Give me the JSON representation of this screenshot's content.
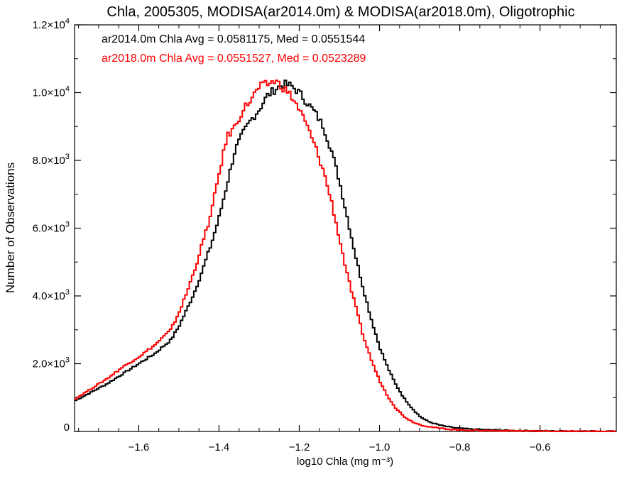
{
  "chart_data": {
    "type": "line",
    "title": "Chla, 2005305, MODISA(ar2014.0m) & MODISA(ar2018.0m), Oligotrophic",
    "xlabel": "log10 Chla (mg m⁻³)",
    "ylabel": "Number of Observations",
    "xlim": [
      -1.76,
      -0.41
    ],
    "ylim": [
      0,
      12000
    ],
    "x_ticks": [
      -1.6,
      -1.4,
      -1.2,
      -1.0,
      -0.8,
      -0.6
    ],
    "x_tick_labels": [
      "−1.6",
      "−1.4",
      "−1.2",
      "−1.0",
      "−0.8",
      "−0.6"
    ],
    "y_ticks": [
      0,
      2000,
      4000,
      6000,
      8000,
      10000,
      12000
    ],
    "y_tick_labels": [
      {
        "base": "0",
        "exp": ""
      },
      {
        "base": "2.0×10",
        "exp": "3"
      },
      {
        "base": "4.0×10",
        "exp": "3"
      },
      {
        "base": "6.0×10",
        "exp": "3"
      },
      {
        "base": "8.0×10",
        "exp": "3"
      },
      {
        "base": "1.0×10",
        "exp": "4"
      },
      {
        "base": "1.2×10",
        "exp": "4"
      }
    ],
    "grid": false,
    "legend_position": "top-left",
    "annotations": [
      {
        "text": "ar2014.0m Chla Avg = 0.0581175, Med = 0.0551544",
        "color": "#000000"
      },
      {
        "text": "ar2018.0m Chla Avg = 0.0551527, Med = 0.0523289",
        "color": "#ff0000"
      }
    ],
    "series": [
      {
        "color": "#000000",
        "style": "step",
        "x": [
          -1.76,
          -1.72,
          -1.68,
          -1.64,
          -1.6,
          -1.56,
          -1.52,
          -1.5,
          -1.48,
          -1.46,
          -1.44,
          -1.42,
          -1.4,
          -1.38,
          -1.36,
          -1.34,
          -1.32,
          -1.3,
          -1.28,
          -1.26,
          -1.24,
          -1.22,
          -1.2,
          -1.18,
          -1.16,
          -1.14,
          -1.12,
          -1.1,
          -1.08,
          -1.06,
          -1.04,
          -1.02,
          -1.0,
          -0.98,
          -0.96,
          -0.94,
          -0.92,
          -0.9,
          -0.88,
          -0.86,
          -0.84,
          -0.82,
          -0.8,
          -0.76,
          -0.72,
          -0.68,
          -0.64,
          -0.6,
          -0.55,
          -0.5,
          -0.45,
          -0.41
        ],
        "y": [
          900,
          1150,
          1400,
          1700,
          2000,
          2300,
          2700,
          3100,
          3600,
          4150,
          4800,
          5500,
          6300,
          7300,
          8300,
          8800,
          9200,
          9500,
          9900,
          10100,
          10250,
          10200,
          10000,
          9700,
          9400,
          9000,
          8300,
          7400,
          6300,
          5200,
          4200,
          3300,
          2500,
          1900,
          1400,
          1000,
          700,
          450,
          300,
          220,
          160,
          120,
          90,
          60,
          45,
          30,
          20,
          15,
          10,
          8,
          5,
          5
        ]
      },
      {
        "color": "#ff0000",
        "style": "step",
        "x": [
          -1.76,
          -1.72,
          -1.68,
          -1.64,
          -1.6,
          -1.56,
          -1.52,
          -1.5,
          -1.48,
          -1.46,
          -1.44,
          -1.42,
          -1.4,
          -1.38,
          -1.36,
          -1.34,
          -1.32,
          -1.3,
          -1.28,
          -1.26,
          -1.24,
          -1.22,
          -1.2,
          -1.18,
          -1.16,
          -1.14,
          -1.12,
          -1.1,
          -1.08,
          -1.06,
          -1.04,
          -1.02,
          -1.0,
          -0.98,
          -0.96,
          -0.94,
          -0.92,
          -0.9,
          -0.88,
          -0.86,
          -0.84,
          -0.82,
          -0.8,
          -0.76,
          -0.72,
          -0.68,
          -0.64,
          -0.6,
          -0.55,
          -0.5,
          -0.45,
          -0.41
        ],
        "y": [
          950,
          1250,
          1550,
          1900,
          2200,
          2550,
          3000,
          3500,
          4100,
          4800,
          5600,
          6400,
          7600,
          8700,
          9000,
          9500,
          9800,
          10150,
          10250,
          10350,
          10150,
          9900,
          9500,
          9000,
          8400,
          7700,
          6800,
          5700,
          4600,
          3700,
          2800,
          2100,
          1500,
          1050,
          700,
          450,
          300,
          200,
          150,
          110,
          80,
          60,
          45,
          30,
          25,
          20,
          15,
          10,
          8,
          5,
          5,
          5
        ]
      }
    ]
  }
}
